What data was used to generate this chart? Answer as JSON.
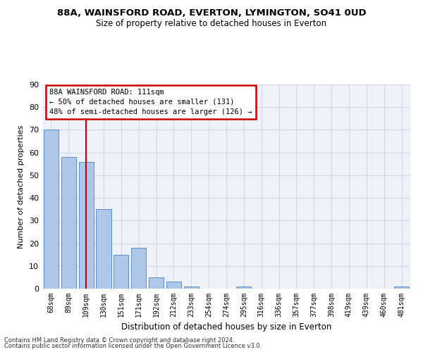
{
  "title1": "88A, WAINSFORD ROAD, EVERTON, LYMINGTON, SO41 0UD",
  "title2": "Size of property relative to detached houses in Everton",
  "xlabel": "Distribution of detached houses by size in Everton",
  "ylabel": "Number of detached properties",
  "categories": [
    "68sqm",
    "89sqm",
    "109sqm",
    "130sqm",
    "151sqm",
    "171sqm",
    "192sqm",
    "212sqm",
    "233sqm",
    "254sqm",
    "274sqm",
    "295sqm",
    "316sqm",
    "336sqm",
    "357sqm",
    "377sqm",
    "398sqm",
    "419sqm",
    "439sqm",
    "460sqm",
    "481sqm"
  ],
  "values": [
    70,
    58,
    56,
    35,
    15,
    18,
    5,
    3,
    1,
    0,
    0,
    1,
    0,
    0,
    0,
    0,
    0,
    0,
    0,
    0,
    1
  ],
  "bar_color": "#aec6e8",
  "bar_edge_color": "#5a8fc0",
  "vline_x": 2,
  "vline_color": "#cc0000",
  "annotation_lines": [
    "88A WAINSFORD ROAD: 111sqm",
    "← 50% of detached houses are smaller (131)",
    "48% of semi-detached houses are larger (126) →"
  ],
  "annotation_box_color": "#cc0000",
  "ylim": [
    0,
    90
  ],
  "yticks": [
    0,
    10,
    20,
    30,
    40,
    50,
    60,
    70,
    80,
    90
  ],
  "footer1": "Contains HM Land Registry data © Crown copyright and database right 2024.",
  "footer2": "Contains public sector information licensed under the Open Government Licence v3.0.",
  "background_color": "#eef2f8",
  "grid_color": "#d0d8e8"
}
